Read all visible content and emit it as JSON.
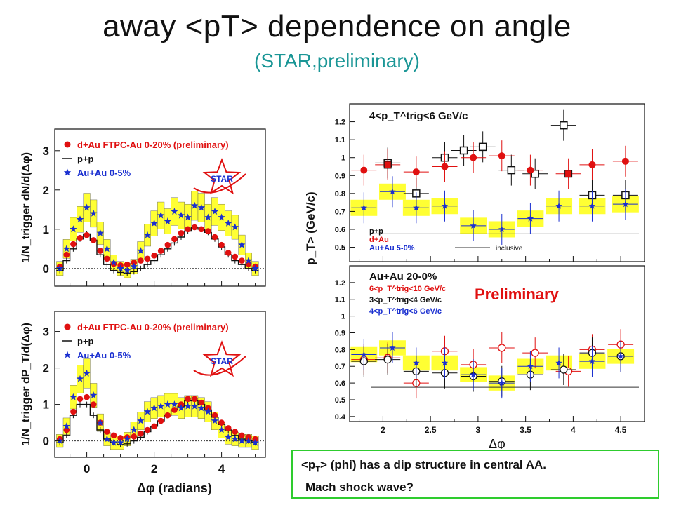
{
  "slide": {
    "title": "away <pT> dependence on angle",
    "subtitle": "(STAR,preliminary)",
    "note_line1": "(phi) has a dip structure in central AA.",
    "note_prefix_a": "<p",
    "note_prefix_sub": "T",
    "note_prefix_b": ">",
    "note_line2": "Mach shock wave?"
  },
  "colors": {
    "red": "#e01010",
    "black": "#111111",
    "blue": "#1a2fd0",
    "band": "#ffff33",
    "title": "#111111",
    "subtitle": "#1a9696",
    "note_border": "#2ecc2e"
  },
  "chart_data": [
    {
      "id": "dN",
      "type": "scatter",
      "ylabel": "1/N_trigger dN/d(Δφ)",
      "xlim": [
        -0.95,
        5.3
      ],
      "ylim": [
        -0.45,
        3.55
      ],
      "yticks": [
        0,
        1,
        2,
        3
      ],
      "legend": [
        "d+Au FTPC-Au 0-20% (preliminary)",
        "p+p",
        "Au+Au 0-5%"
      ],
      "logo": "STAR",
      "x": [
        -0.8,
        -0.6,
        -0.4,
        -0.2,
        0.0,
        0.2,
        0.4,
        0.6,
        0.8,
        1.0,
        1.2,
        1.4,
        1.6,
        1.8,
        2.0,
        2.2,
        2.4,
        2.6,
        2.8,
        3.0,
        3.2,
        3.4,
        3.6,
        3.8,
        4.0,
        4.2,
        4.4,
        4.6,
        4.8,
        5.0
      ],
      "series": [
        {
          "name": "d+Au FTPC-Au 0-20% (preliminary)",
          "marker": "circle",
          "color": "red",
          "values": [
            0.05,
            0.35,
            0.62,
            0.78,
            0.85,
            0.72,
            0.45,
            0.25,
            0.12,
            0.08,
            0.1,
            0.15,
            0.2,
            0.25,
            0.33,
            0.45,
            0.6,
            0.75,
            0.9,
            1.0,
            1.05,
            1.0,
            0.95,
            0.8,
            0.6,
            0.4,
            0.3,
            0.2,
            0.12,
            0.05
          ]
        },
        {
          "name": "p+p",
          "marker": "step",
          "color": "black",
          "values": [
            -0.05,
            0.2,
            0.5,
            0.75,
            0.88,
            0.72,
            0.35,
            0.1,
            -0.05,
            -0.1,
            -0.12,
            -0.08,
            0.0,
            0.1,
            0.2,
            0.35,
            0.5,
            0.65,
            0.8,
            0.95,
            1.05,
            1.0,
            0.92,
            0.75,
            0.55,
            0.35,
            0.2,
            0.1,
            0.0,
            -0.05
          ]
        },
        {
          "name": "Au+Au 0-5%",
          "marker": "star",
          "color": "blue",
          "values": [
            0.0,
            0.5,
            1.0,
            1.25,
            1.55,
            1.4,
            0.9,
            0.5,
            0.15,
            0.0,
            -0.05,
            0.05,
            0.45,
            0.85,
            1.15,
            1.35,
            1.2,
            1.45,
            1.35,
            1.3,
            1.6,
            1.55,
            1.3,
            1.45,
            1.3,
            1.15,
            1.05,
            0.6,
            0.2,
            0.0
          ]
        }
      ]
    },
    {
      "id": "dPT",
      "type": "scatter",
      "ylabel": "1/N_trigger dP_T/d(Δφ)",
      "xlabel": "Δφ (radians)",
      "xticks": [
        0,
        2,
        4
      ],
      "xlim": [
        -0.95,
        5.3
      ],
      "ylim": [
        -0.45,
        3.55
      ],
      "yticks": [
        0,
        1,
        2,
        3
      ],
      "legend": [
        "d+Au FTPC-Au 0-20% (preliminary)",
        "p+p",
        "Au+Au 0-5%"
      ],
      "logo": "STAR",
      "x": [
        -0.8,
        -0.6,
        -0.4,
        -0.2,
        0.0,
        0.2,
        0.4,
        0.6,
        0.8,
        1.0,
        1.2,
        1.4,
        1.6,
        1.8,
        2.0,
        2.2,
        2.4,
        2.6,
        2.8,
        3.0,
        3.2,
        3.4,
        3.6,
        3.8,
        4.0,
        4.2,
        4.4,
        4.6,
        4.8,
        5.0
      ],
      "series": [
        {
          "name": "d+Au FTPC-Au 0-20% (preliminary)",
          "marker": "circle",
          "color": "red",
          "values": [
            0.05,
            0.3,
            0.8,
            1.15,
            1.2,
            1.0,
            0.5,
            0.25,
            0.15,
            0.08,
            0.1,
            0.12,
            0.2,
            0.3,
            0.4,
            0.55,
            0.7,
            0.85,
            1.0,
            1.15,
            1.15,
            1.05,
            0.9,
            0.7,
            0.5,
            0.35,
            0.25,
            0.15,
            0.1,
            0.05
          ]
        },
        {
          "name": "p+p",
          "marker": "step",
          "color": "black",
          "values": [
            -0.05,
            0.15,
            0.7,
            1.0,
            1.0,
            0.7,
            0.3,
            0.05,
            -0.05,
            -0.1,
            -0.08,
            0.0,
            0.1,
            0.25,
            0.4,
            0.55,
            0.7,
            0.85,
            0.95,
            1.1,
            1.1,
            1.0,
            0.85,
            0.65,
            0.45,
            0.3,
            0.15,
            0.05,
            0.0,
            -0.05
          ]
        },
        {
          "name": "Au+Au 0-5%",
          "marker": "star",
          "color": "blue",
          "values": [
            0.0,
            0.4,
            1.2,
            1.7,
            1.85,
            1.25,
            0.5,
            0.05,
            -0.05,
            -0.05,
            0.05,
            0.3,
            0.55,
            0.8,
            0.9,
            0.95,
            1.0,
            1.0,
            0.9,
            0.95,
            0.95,
            0.9,
            0.8,
            0.55,
            0.3,
            0.1,
            0.05,
            0.0,
            0.0,
            -0.05
          ]
        }
      ]
    },
    {
      "id": "pt-top",
      "type": "scatter",
      "ylabel": "<p_T> (GeV/c)",
      "xlim": [
        1.65,
        4.75
      ],
      "ylim": [
        0.42,
        1.3
      ],
      "yticks": [
        0.5,
        0.6,
        0.7,
        0.8,
        0.9,
        1.0,
        1.1,
        1.2
      ],
      "annotation": "4<p_T^trig<6 GeV/c",
      "legend": [
        "p+p",
        "d+Au",
        "Au+Au 5-0%",
        "inclusive"
      ],
      "inclusive_level": 0.575,
      "series": [
        {
          "name": "p+p",
          "marker": "open-square",
          "color": "black",
          "x": [
            2.05,
            2.35,
            2.65,
            2.85,
            3.05,
            3.35,
            3.6,
            3.9,
            4.2,
            4.55
          ],
          "values": [
            0.97,
            0.8,
            1.0,
            1.04,
            1.06,
            0.93,
            0.91,
            1.18,
            0.79,
            0.79
          ]
        },
        {
          "name": "d+Au",
          "marker": "circle",
          "color": "red",
          "x": [
            1.8,
            2.05,
            2.35,
            2.65,
            2.95,
            3.25,
            3.55,
            3.95,
            4.2,
            4.55
          ],
          "values": [
            0.93,
            0.96,
            0.92,
            0.95,
            1.0,
            1.01,
            0.93,
            0.91,
            0.96,
            0.98
          ]
        },
        {
          "name": "Au+Au 5-0%",
          "marker": "star",
          "color": "blue",
          "x": [
            1.8,
            2.1,
            2.35,
            2.65,
            2.95,
            3.25,
            3.55,
            3.85,
            4.2,
            4.55
          ],
          "values": [
            0.72,
            0.81,
            0.72,
            0.73,
            0.62,
            0.6,
            0.66,
            0.73,
            0.73,
            0.74
          ]
        }
      ]
    },
    {
      "id": "pt-bottom",
      "type": "scatter",
      "xlabel": "Δφ",
      "xlim": [
        1.65,
        4.75
      ],
      "ylim": [
        0.37,
        1.3
      ],
      "xticks": [
        2,
        2.5,
        3,
        3.5,
        4,
        4.5
      ],
      "yticks": [
        0.4,
        0.5,
        0.6,
        0.7,
        0.8,
        0.9,
        1.0,
        1.1,
        1.2
      ],
      "annotation": "Au+Au 20-0%",
      "watermark": "Preliminary",
      "legend": [
        "6<p_T^trig<10 GeV/c",
        "3<p_T^trig<4 GeV/c",
        "4<p_T^trig<6 GeV/c"
      ],
      "inclusive_level": 0.575,
      "series": [
        {
          "name": "6<p_T^trig<10 GeV/c",
          "marker": "open-circle",
          "color": "red",
          "x": [
            1.8,
            2.05,
            2.35,
            2.65,
            2.95,
            3.25,
            3.6,
            3.95,
            4.2,
            4.5
          ],
          "values": [
            0.74,
            0.75,
            0.6,
            0.79,
            0.71,
            0.81,
            0.78,
            0.67,
            0.8,
            0.83
          ]
        },
        {
          "name": "3<p_T^trig<4 GeV/c",
          "marker": "open-circle",
          "color": "black",
          "x": [
            1.8,
            2.05,
            2.35,
            2.65,
            2.95,
            3.25,
            3.55,
            3.9,
            4.2,
            4.5
          ],
          "values": [
            0.73,
            0.74,
            0.67,
            0.66,
            0.64,
            0.61,
            0.65,
            0.68,
            0.78,
            0.76
          ]
        },
        {
          "name": "4<p_T^trig<6 GeV/c",
          "marker": "star",
          "color": "blue",
          "x": [
            1.8,
            2.1,
            2.35,
            2.65,
            2.95,
            3.25,
            3.55,
            3.85,
            4.2,
            4.5
          ],
          "values": [
            0.77,
            0.81,
            0.72,
            0.72,
            0.65,
            0.6,
            0.7,
            0.72,
            0.73,
            0.76
          ]
        }
      ]
    }
  ]
}
